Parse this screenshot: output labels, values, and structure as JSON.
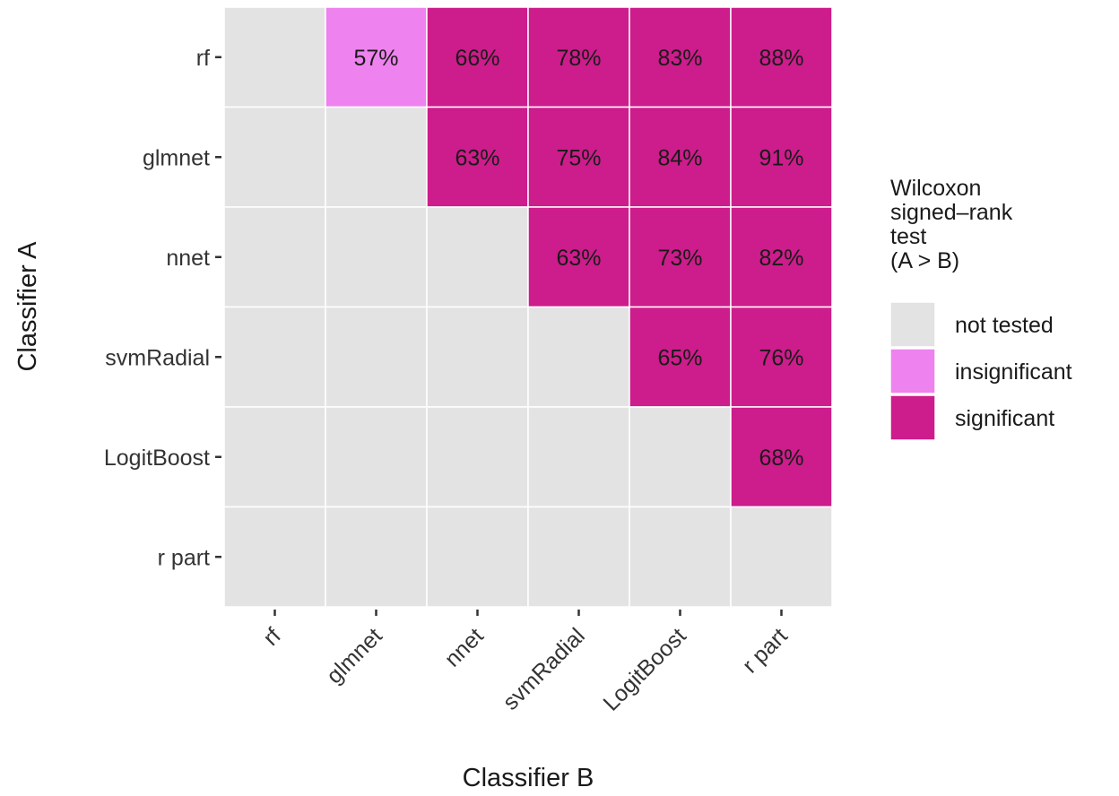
{
  "chart_data": {
    "type": "heatmap",
    "x_categories": [
      "rf",
      "glmnet",
      "nnet",
      "svmRadial",
      "LogitBoost",
      "r part"
    ],
    "y_categories": [
      "rf",
      "glmnet",
      "nnet",
      "svmRadial",
      "LogitBoost",
      "r part"
    ],
    "xlabel": "Classifier B",
    "ylabel": "Classifier A",
    "cells": [
      {
        "a": "rf",
        "b": "glmnet",
        "label": "57%",
        "status": "insignificant"
      },
      {
        "a": "rf",
        "b": "nnet",
        "label": "66%",
        "status": "significant"
      },
      {
        "a": "rf",
        "b": "svmRadial",
        "label": "78%",
        "status": "significant"
      },
      {
        "a": "rf",
        "b": "LogitBoost",
        "label": "83%",
        "status": "significant"
      },
      {
        "a": "rf",
        "b": "r part",
        "label": "88%",
        "status": "significant"
      },
      {
        "a": "glmnet",
        "b": "nnet",
        "label": "63%",
        "status": "significant"
      },
      {
        "a": "glmnet",
        "b": "svmRadial",
        "label": "75%",
        "status": "significant"
      },
      {
        "a": "glmnet",
        "b": "LogitBoost",
        "label": "84%",
        "status": "significant"
      },
      {
        "a": "glmnet",
        "b": "r part",
        "label": "91%",
        "status": "significant"
      },
      {
        "a": "nnet",
        "b": "svmRadial",
        "label": "63%",
        "status": "significant"
      },
      {
        "a": "nnet",
        "b": "LogitBoost",
        "label": "73%",
        "status": "significant"
      },
      {
        "a": "nnet",
        "b": "r part",
        "label": "82%",
        "status": "significant"
      },
      {
        "a": "svmRadial",
        "b": "LogitBoost",
        "label": "65%",
        "status": "significant"
      },
      {
        "a": "svmRadial",
        "b": "r part",
        "label": "76%",
        "status": "significant"
      },
      {
        "a": "LogitBoost",
        "b": "r part",
        "label": "68%",
        "status": "significant"
      }
    ],
    "default_status": "not tested",
    "legend": {
      "title_lines": [
        "Wilcoxon",
        "signed–rank",
        "test",
        "(A > B)"
      ],
      "placement": "right",
      "items": [
        {
          "status": "not tested",
          "label": "not tested",
          "color": "#e3e3e3"
        },
        {
          "status": "insignificant",
          "label": "insignificant",
          "color": "#ee82ee"
        },
        {
          "status": "significant",
          "label": "significant",
          "color": "#cd1c8b"
        }
      ]
    },
    "grid_line_color": "#ffffff"
  }
}
